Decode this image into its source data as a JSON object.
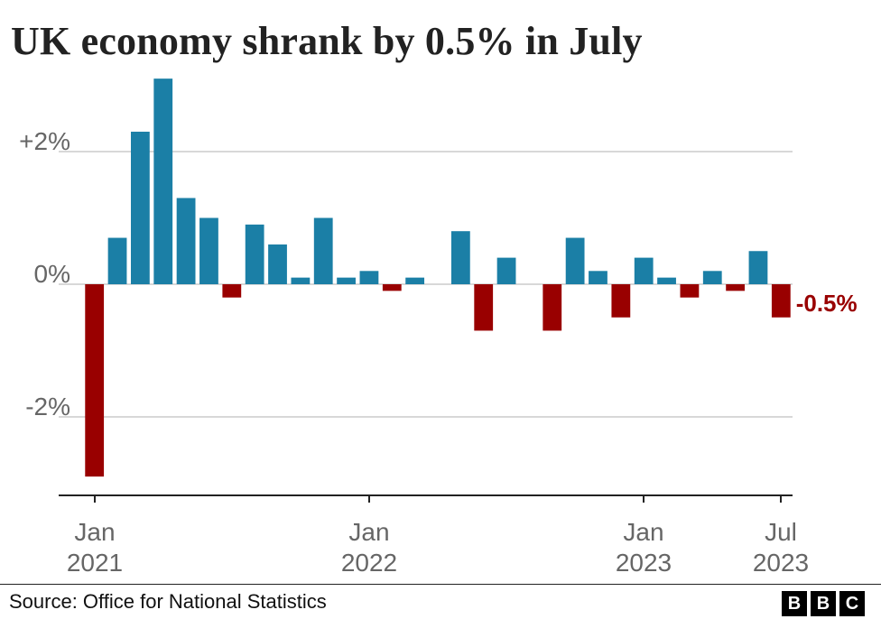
{
  "title": "UK economy shrank by 0.5% in July",
  "source": "Source: Office for National Statistics",
  "logo_letters": [
    "B",
    "B",
    "C"
  ],
  "colors": {
    "positive": "#1b7fa6",
    "negative": "#990000",
    "grid": "#cccccc",
    "axis": "#222222",
    "tick_text": "#666666"
  },
  "chart_data": {
    "type": "bar",
    "title": "UK economy shrank by 0.5% in July",
    "categories": [
      "Jan 2021",
      "Feb 2021",
      "Mar 2021",
      "Apr 2021",
      "May 2021",
      "Jun 2021",
      "Jul 2021",
      "Aug 2021",
      "Sep 2021",
      "Oct 2021",
      "Nov 2021",
      "Dec 2021",
      "Jan 2022",
      "Feb 2022",
      "Mar 2022",
      "Apr 2022",
      "May 2022",
      "Jun 2022",
      "Jul 2022",
      "Aug 2022",
      "Sep 2022",
      "Oct 2022",
      "Nov 2022",
      "Dec 2022",
      "Jan 2023",
      "Feb 2023",
      "Mar 2023",
      "Apr 2023",
      "May 2023",
      "Jun 2023",
      "Jul 2023"
    ],
    "values": [
      -2.9,
      0.7,
      2.3,
      3.1,
      1.3,
      1.0,
      -0.2,
      0.9,
      0.6,
      0.1,
      1.0,
      0.1,
      0.2,
      -0.1,
      0.1,
      0.0,
      0.8,
      -0.7,
      0.4,
      0.0,
      -0.7,
      0.7,
      0.2,
      -0.5,
      0.4,
      0.1,
      -0.2,
      0.2,
      -0.1,
      0.5,
      -0.5
    ],
    "ylim": [
      -3,
      3.1
    ],
    "y_ticks": [
      {
        "value": 2,
        "label": "+2%"
      },
      {
        "value": 0,
        "label": "0%"
      },
      {
        "value": -2,
        "label": "-2%"
      }
    ],
    "x_ticks": [
      {
        "index": 0,
        "line1": "Jan",
        "line2": "2021"
      },
      {
        "index": 12,
        "line1": "Jan",
        "line2": "2022"
      },
      {
        "index": 24,
        "line1": "Jan",
        "line2": "2023"
      },
      {
        "index": 30,
        "line1": "Jul",
        "line2": "2023"
      }
    ],
    "annotation": {
      "index": 30,
      "text": "-0.5%"
    },
    "grid": true
  }
}
